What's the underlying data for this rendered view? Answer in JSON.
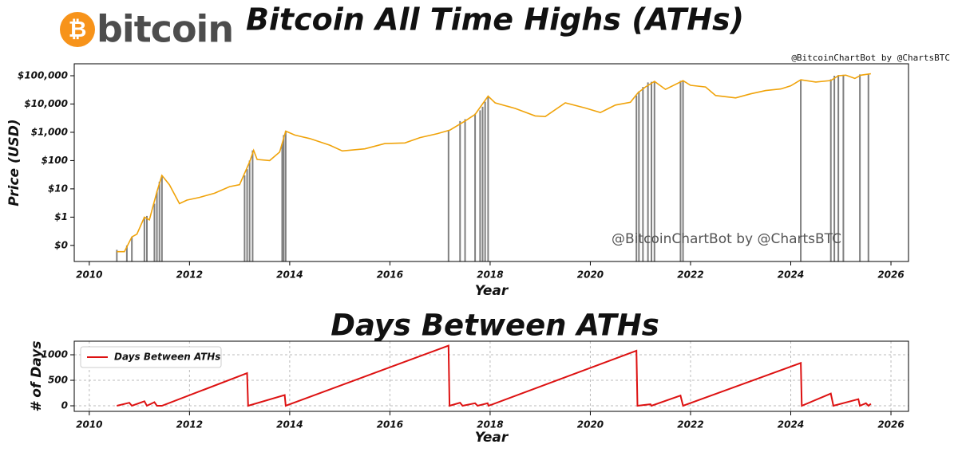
{
  "header": {
    "logo_symbol": "₿",
    "logo_text": "bitcoin",
    "credit": "@BitcoinChartBot by @ChartsBTC"
  },
  "chart_data": [
    {
      "type": "line",
      "title": "Bitcoin All Time Highs (ATHs)",
      "xlabel": "Year",
      "ylabel": "Price (USD)",
      "watermark": "@BitcoinChartBot by @ChartsBTC",
      "log_scale": true,
      "color": "#f0a30a",
      "x": [
        2010.55,
        2010.7,
        2010.85,
        2010.95,
        2011.1,
        2011.2,
        2011.35,
        2011.45,
        2011.6,
        2011.8,
        2011.95,
        2012.2,
        2012.5,
        2012.8,
        2013.0,
        2013.2,
        2013.28,
        2013.35,
        2013.6,
        2013.8,
        2013.92,
        2014.1,
        2014.4,
        2014.8,
        2015.05,
        2015.5,
        2015.9,
        2016.3,
        2016.6,
        2016.95,
        2017.2,
        2017.5,
        2017.7,
        2017.96,
        2018.1,
        2018.5,
        2018.9,
        2019.1,
        2019.5,
        2019.9,
        2020.2,
        2020.5,
        2020.8,
        2020.95,
        2021.1,
        2021.28,
        2021.5,
        2021.85,
        2022.0,
        2022.3,
        2022.5,
        2022.9,
        2023.2,
        2023.5,
        2023.8,
        2024.0,
        2024.2,
        2024.5,
        2024.8,
        2024.95,
        2025.1,
        2025.28,
        2025.4,
        2025.55,
        2025.6
      ],
      "values": [
        0.06,
        0.06,
        0.2,
        0.25,
        1.0,
        0.8,
        8,
        30,
        14,
        3,
        4,
        5,
        7,
        12,
        14,
        90,
        230,
        110,
        100,
        200,
        1100,
        800,
        600,
        350,
        220,
        260,
        400,
        420,
        650,
        900,
        1200,
        2500,
        4300,
        19000,
        11000,
        7000,
        3800,
        3600,
        11000,
        7200,
        5000,
        9200,
        11500,
        25000,
        40000,
        63000,
        33000,
        67000,
        46000,
        40000,
        20000,
        16500,
        23000,
        30000,
        34000,
        44000,
        72000,
        60000,
        68000,
        100000,
        105000,
        80000,
        105000,
        115000,
        118000
      ],
      "ath_color": "#808080",
      "ath_x": [
        2010.55,
        2010.75,
        2010.85,
        2011.1,
        2011.15,
        2011.3,
        2011.35,
        2011.4,
        2011.45,
        2013.1,
        2013.15,
        2013.2,
        2013.26,
        2013.85,
        2013.88,
        2013.92,
        2017.17,
        2017.4,
        2017.5,
        2017.7,
        2017.8,
        2017.85,
        2017.9,
        2017.96,
        2020.92,
        2020.97,
        2021.05,
        2021.15,
        2021.22,
        2021.28,
        2021.8,
        2021.85,
        2024.2,
        2024.8,
        2024.87,
        2024.95,
        2025.05,
        2025.38,
        2025.55
      ],
      "ath_values": [
        0.07,
        0.1,
        0.2,
        1,
        1.1,
        3,
        8,
        18,
        30,
        30,
        50,
        100,
        230,
        400,
        800,
        1100,
        1200,
        2500,
        2900,
        4500,
        6000,
        8000,
        12000,
        19000,
        20000,
        28000,
        40000,
        58000,
        61000,
        64000,
        66000,
        68000,
        72000,
        75000,
        100000,
        106000,
        108000,
        111000,
        118000
      ],
      "xlim": [
        2009.7,
        2026.35
      ],
      "xticks": [
        2010,
        2012,
        2014,
        2016,
        2018,
        2020,
        2022,
        2024,
        2026
      ],
      "ylim": [
        0.027,
        265000
      ],
      "yticks": [
        {
          "value": 0.1,
          "label": "$0"
        },
        {
          "value": 1,
          "label": "$1"
        },
        {
          "value": 10,
          "label": "$10"
        },
        {
          "value": 100,
          "label": "$100"
        },
        {
          "value": 1000,
          "label": "$1,000"
        },
        {
          "value": 10000,
          "label": "$10,000"
        },
        {
          "value": 100000,
          "label": "$100,000"
        }
      ],
      "grid": false
    },
    {
      "type": "line",
      "title": "Days Between ATHs",
      "xlabel": "Year",
      "ylabel": "# of Days",
      "log_scale": false,
      "series": [
        {
          "name": "Days Between ATHs",
          "color": "#dd1111",
          "x": [
            2010.55,
            2010.8,
            2010.85,
            2011.1,
            2011.15,
            2011.3,
            2011.35,
            2011.45,
            2013.15,
            2013.17,
            2013.9,
            2013.92,
            2017.17,
            2017.19,
            2017.4,
            2017.45,
            2017.7,
            2017.75,
            2017.95,
            2017.97,
            2020.92,
            2020.94,
            2021.2,
            2021.22,
            2021.8,
            2021.85,
            2024.2,
            2024.22,
            2024.8,
            2024.85,
            2025.35,
            2025.38,
            2025.5,
            2025.55,
            2025.6
          ],
          "values": [
            0,
            60,
            0,
            90,
            0,
            70,
            0,
            0,
            640,
            0,
            210,
            0,
            1180,
            0,
            60,
            0,
            50,
            0,
            50,
            0,
            1080,
            0,
            30,
            0,
            200,
            0,
            840,
            0,
            240,
            0,
            130,
            0,
            50,
            0,
            40
          ]
        }
      ],
      "legend": "upper left",
      "xlim": [
        2009.7,
        2026.35
      ],
      "xticks": [
        2010,
        2012,
        2014,
        2016,
        2018,
        2020,
        2022,
        2024,
        2026
      ],
      "ylim": [
        -109,
        1266
      ],
      "yticks": [
        0,
        500,
        1000
      ],
      "grid": true
    }
  ]
}
